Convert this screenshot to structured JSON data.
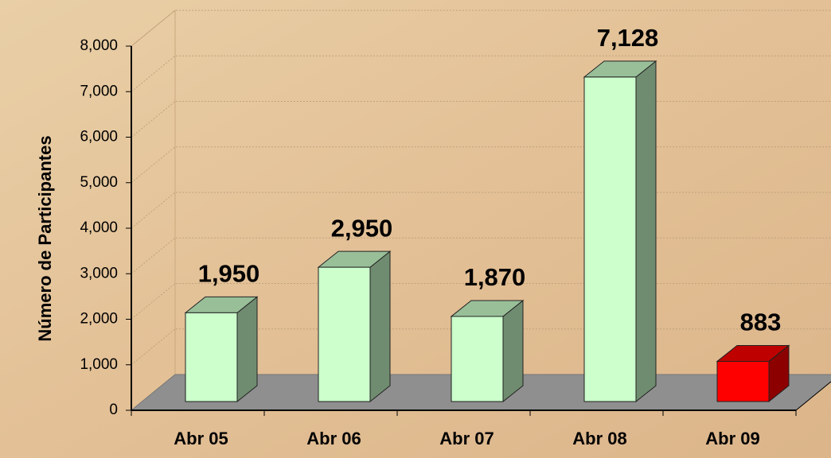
{
  "chart_data": {
    "type": "bar3d",
    "y_axis_label": "Número de Participantes",
    "categories": [
      "Abr 05",
      "Abr 06",
      "Abr 07",
      "Abr 08",
      "Abr 09"
    ],
    "values": [
      1950,
      2950,
      1870,
      7128,
      883
    ],
    "value_labels": [
      "1,950",
      "2,950",
      "1,870",
      "7,128",
      "883"
    ],
    "colors": [
      "#ccffcc",
      "#ccffcc",
      "#ccffcc",
      "#ccffcc",
      "#ff0000"
    ],
    "ylim": [
      0,
      8000
    ],
    "yticks": [
      0,
      {
        "value": 1000,
        "label": "1,000"
      },
      {
        "value": 2000,
        "label": "2,000"
      },
      {
        "value": 3000,
        "label": "3,000"
      },
      {
        "value": 4000,
        "label": "4,000"
      },
      {
        "value": 5000,
        "label": "5,000"
      },
      {
        "value": 6000,
        "label": "6,000"
      },
      {
        "value": 7000,
        "label": "7,000"
      },
      {
        "value": 8000,
        "label": "8,000"
      }
    ],
    "grid": true
  }
}
